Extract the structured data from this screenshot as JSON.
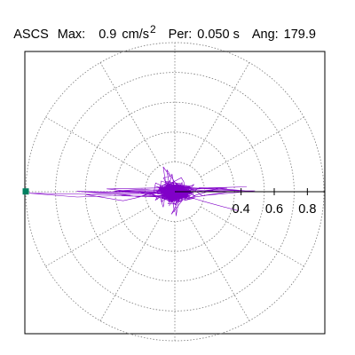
{
  "header": {
    "title": "ASCS",
    "max_label": "Max:",
    "max_value": "0.9",
    "max_unit": "cm/s",
    "max_unit_sup": "2",
    "per_label": "Per:",
    "per_value": "0.050 s",
    "ang_label": "Ang:",
    "ang_value": "179.9"
  },
  "chart_data": {
    "type": "polar-orbit",
    "radial_ticks": [
      "0.4",
      "0.6",
      "0.8"
    ],
    "radial_tick_values": [
      0.4,
      0.6,
      0.8
    ],
    "r_max": 0.9,
    "rings": [
      0.18,
      0.36,
      0.54,
      0.72,
      0.9
    ],
    "spoke_step_deg": 30,
    "max_angle_deg": 179.9,
    "max_value": 0.9,
    "series_color": "#8000c8",
    "marker_color": "#008060",
    "trace_seed": 7,
    "trace_points": 1400
  }
}
